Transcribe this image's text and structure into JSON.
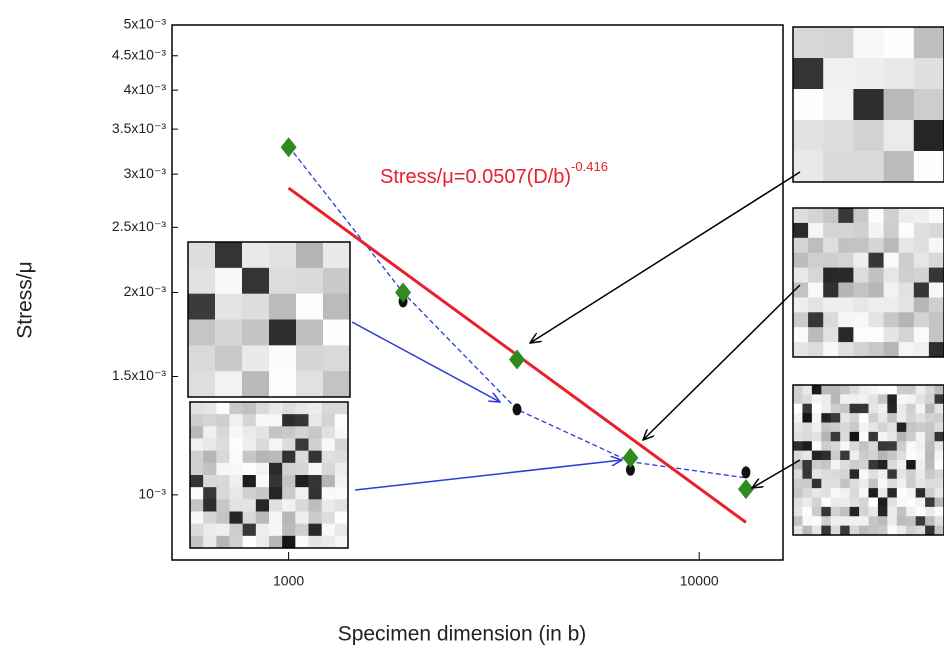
{
  "chart_data": {
    "type": "scatter",
    "xlabel": "Specimen dimension (in b)",
    "ylabel": "Stress/μ",
    "xscale": "log",
    "yscale": "log",
    "xlim": [
      520,
      16000
    ],
    "ylim": [
      0.0008,
      0.005
    ],
    "xticks": [
      1000,
      10000
    ],
    "yticks": [
      {
        "value": 0.001,
        "label": "10⁻³"
      },
      {
        "value": 0.0015,
        "label": "1.5x10⁻³"
      },
      {
        "value": 0.002,
        "label": "2x10⁻³"
      },
      {
        "value": 0.0025,
        "label": "2.5x10⁻³"
      },
      {
        "value": 0.003,
        "label": "3x10⁻³"
      },
      {
        "value": 0.0035,
        "label": "3.5x10⁻³"
      },
      {
        "value": 0.004,
        "label": "4x10⁻³"
      },
      {
        "value": 0.0045,
        "label": "4.5x10⁻³"
      },
      {
        "value": 0.005,
        "label": "5x10⁻³"
      }
    ],
    "annotation": {
      "text": "Stress/μ=0.0507(D/b)",
      "superscript": "-0.416",
      "color": "#e8202a"
    },
    "series": [
      {
        "x": [
          1000,
          1900,
          3600,
          6800,
          13000
        ],
        "values": [
          0.0033,
          0.002,
          0.00134,
          0.00112,
          0.00106
        ],
        "color": "#2a3cd8",
        "style": "dashed-line"
      },
      {
        "x": [
          1000,
          13000
        ],
        "values": [
          0.00286,
          0.00091
        ],
        "color": "#e8202a",
        "style": "line"
      },
      {
        "x": [
          1900,
          3600,
          6800,
          13000
        ],
        "values": [
          0.00194,
          0.00134,
          0.00109,
          0.00108
        ],
        "color": "#111111",
        "style": "circle"
      },
      {
        "x": [
          1000,
          1900,
          3600,
          6800,
          13000
        ],
        "values": [
          0.00329,
          0.002,
          0.00159,
          0.001135,
          0.00102
        ],
        "color": "#2e8b1e",
        "style": "diamond"
      }
    ]
  }
}
